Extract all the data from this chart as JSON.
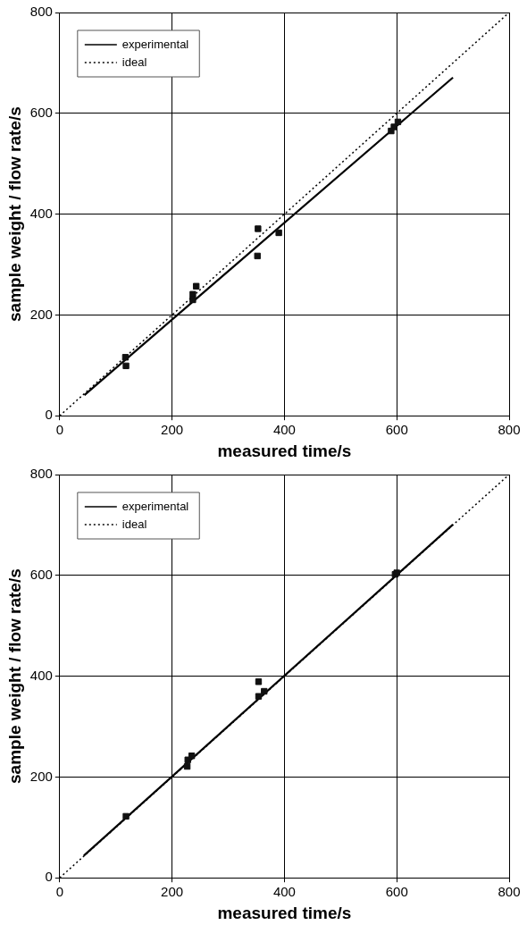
{
  "chart_data": [
    {
      "type": "scatter",
      "xlabel": "measured time/s",
      "ylabel": "sample weight / flow rate/s",
      "xlim": [
        0,
        800
      ],
      "ylim": [
        0,
        800
      ],
      "xticks": [
        0,
        200,
        400,
        600,
        800
      ],
      "yticks": [
        0,
        200,
        400,
        600,
        800
      ],
      "grid": true,
      "legend": "top left",
      "series": [
        {
          "name": "experimental",
          "type": "line",
          "color": "#000000",
          "line_style": "solid",
          "marker": "none",
          "x": [
            44,
            700
          ],
          "values": [
            41,
            671
          ]
        },
        {
          "name": "ideal",
          "type": "line",
          "color": "#000000",
          "line_style": "dotted",
          "marker": "none",
          "x": [
            0,
            800
          ],
          "values": [
            0,
            800
          ]
        },
        {
          "type": "scatter",
          "color": "#111111",
          "marker": "square",
          "x": [
            117,
            118,
            237,
            237,
            243,
            353,
            352,
            390,
            595,
            602,
            590
          ],
          "values": [
            116,
            99,
            241,
            230,
            257,
            371,
            317,
            363,
            573,
            583,
            565
          ]
        }
      ]
    },
    {
      "type": "scatter",
      "xlabel": "measured time/s",
      "ylabel": "sample weight / flow rate/s",
      "xlim": [
        0,
        800
      ],
      "ylim": [
        0,
        800
      ],
      "xticks": [
        0,
        200,
        400,
        600,
        800
      ],
      "yticks": [
        0,
        200,
        400,
        600,
        800
      ],
      "grid": true,
      "legend": "top left",
      "series": [
        {
          "name": "experimental",
          "type": "line",
          "color": "#000000",
          "line_style": "solid",
          "marker": "none",
          "x": [
            43,
            700
          ],
          "values": [
            44,
            701
          ]
        },
        {
          "name": "ideal",
          "type": "line",
          "color": "#000000",
          "line_style": "dotted",
          "marker": "none",
          "x": [
            0,
            800
          ],
          "values": [
            0,
            800
          ]
        },
        {
          "type": "scatter",
          "color": "#111111",
          "marker": "square",
          "x": [
            118,
            227,
            228,
            235,
            354,
            354,
            364,
            597,
            600
          ],
          "values": [
            122,
            221,
            234,
            242,
            389,
            360,
            370,
            602,
            605
          ]
        }
      ]
    }
  ]
}
